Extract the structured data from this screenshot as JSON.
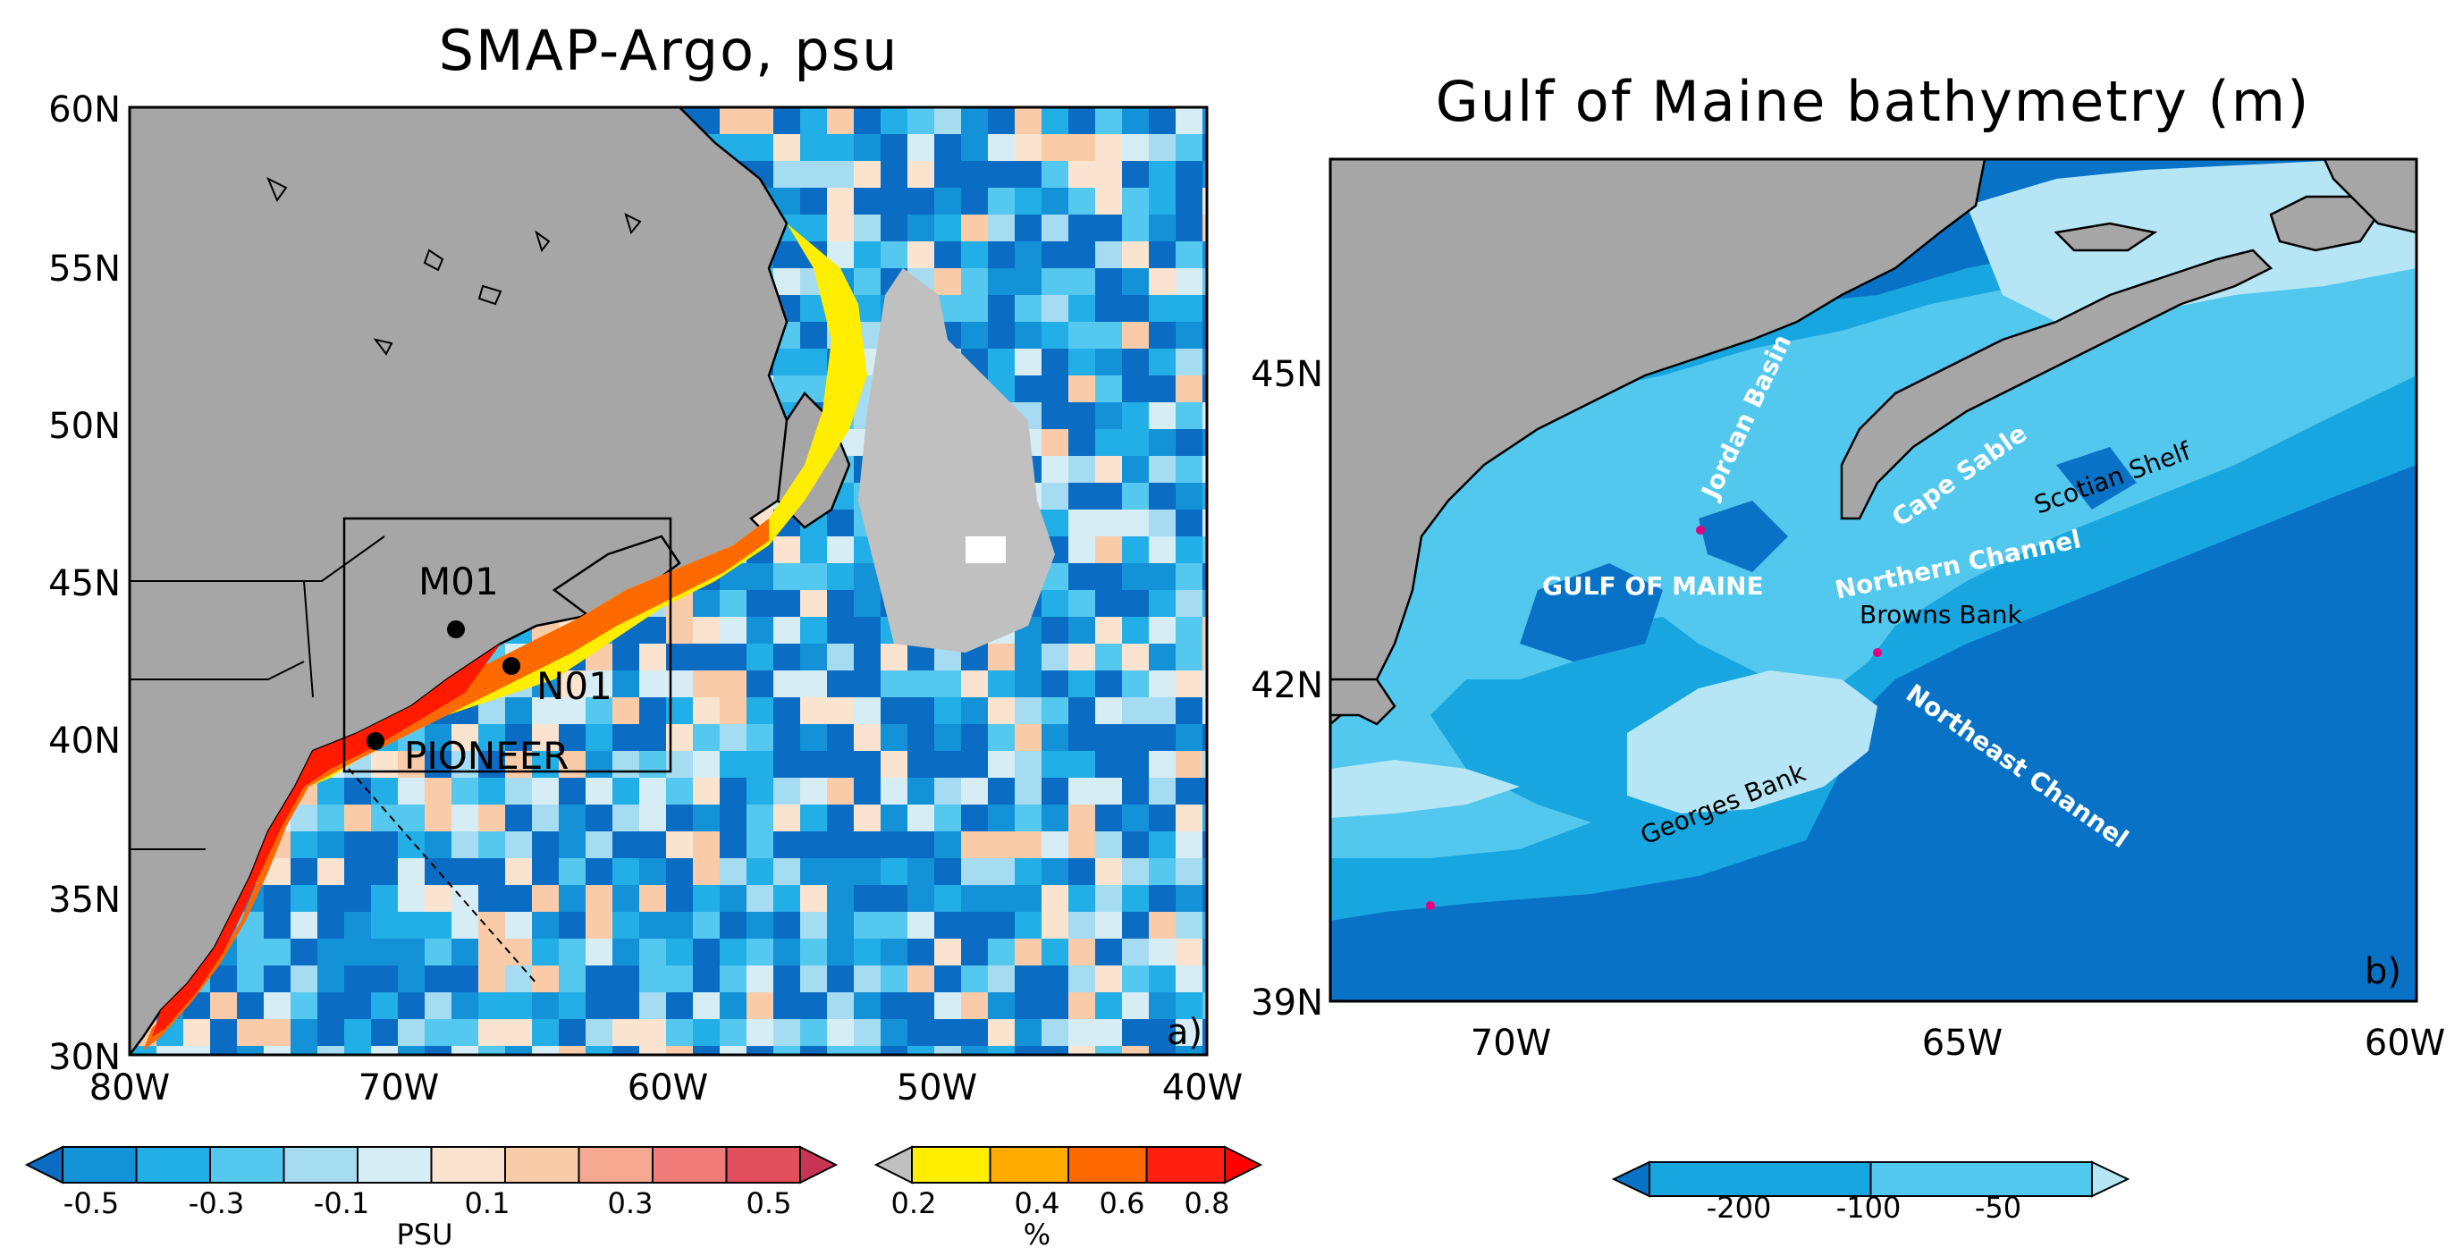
{
  "panel_a": {
    "title": "SMAP-Argo, psu",
    "panel_label": "a)",
    "lat_ticks": [
      "60N",
      "55N",
      "50N",
      "45N",
      "40N",
      "35N",
      "30N"
    ],
    "lon_ticks": [
      "80W",
      "70W",
      "60W",
      "50W",
      "40W"
    ],
    "sites": [
      {
        "name": "M01"
      },
      {
        "name": "N01"
      },
      {
        "name": "PIONEER"
      }
    ],
    "colors": {
      "land": "#a6a6a6",
      "no_data": "#ffffff",
      "masked": "#c0c0c0",
      "site_marker": "#000000"
    }
  },
  "panel_b": {
    "title": "Gulf of Maine bathymetry (m)",
    "panel_label": "b)",
    "lat_ticks": [
      "45N",
      "42N",
      "39N"
    ],
    "lon_ticks": [
      "70W",
      "65W",
      "60W"
    ],
    "place_labels": {
      "jordan_basin": "Jordan Basin",
      "cape_sable": "Cape Sable",
      "scotian_shelf": "Scotian Shelf",
      "gulf_of_maine": "GULF OF MAINE",
      "northern_channel": "Northern Channel",
      "browns_bank": "Browns Bank",
      "northeast_channel": "Northeast Channel",
      "georges_bank": "Georges Bank"
    },
    "colors": {
      "deep": "#0872c6",
      "mid": "#17a6e0",
      "shallow": "#52c8ee",
      "shelf": "#b6e6f6",
      "land": "#a6a6a6",
      "marker": "#e6007e"
    }
  },
  "colorbars": {
    "salinity": {
      "unit": "PSU",
      "ticks": [
        "-0.5",
        "-0.3",
        "-0.1",
        "0.1",
        "0.3",
        "0.5"
      ],
      "colors": [
        "#0b6cc4",
        "#1392d8",
        "#22aee6",
        "#55c8ef",
        "#a6dcf2",
        "#d6edf6",
        "#fbe4cf",
        "#f9cba8",
        "#f5a990",
        "#ef7c78",
        "#e2505e",
        "#c93455"
      ]
    },
    "percent": {
      "unit": "%",
      "ticks": [
        "0.2",
        "0.4",
        "0.6",
        "0.8"
      ],
      "colors": [
        "#c0c0c0",
        "#ffee00",
        "#ffab00",
        "#ff6a00",
        "#ff2010",
        "#ff0000"
      ]
    },
    "depth": {
      "ticks": [
        "-200",
        "-100",
        "-50"
      ],
      "colors": [
        "#0872c6",
        "#17a6e0",
        "#52c8ee",
        "#b6e6f6"
      ]
    }
  }
}
